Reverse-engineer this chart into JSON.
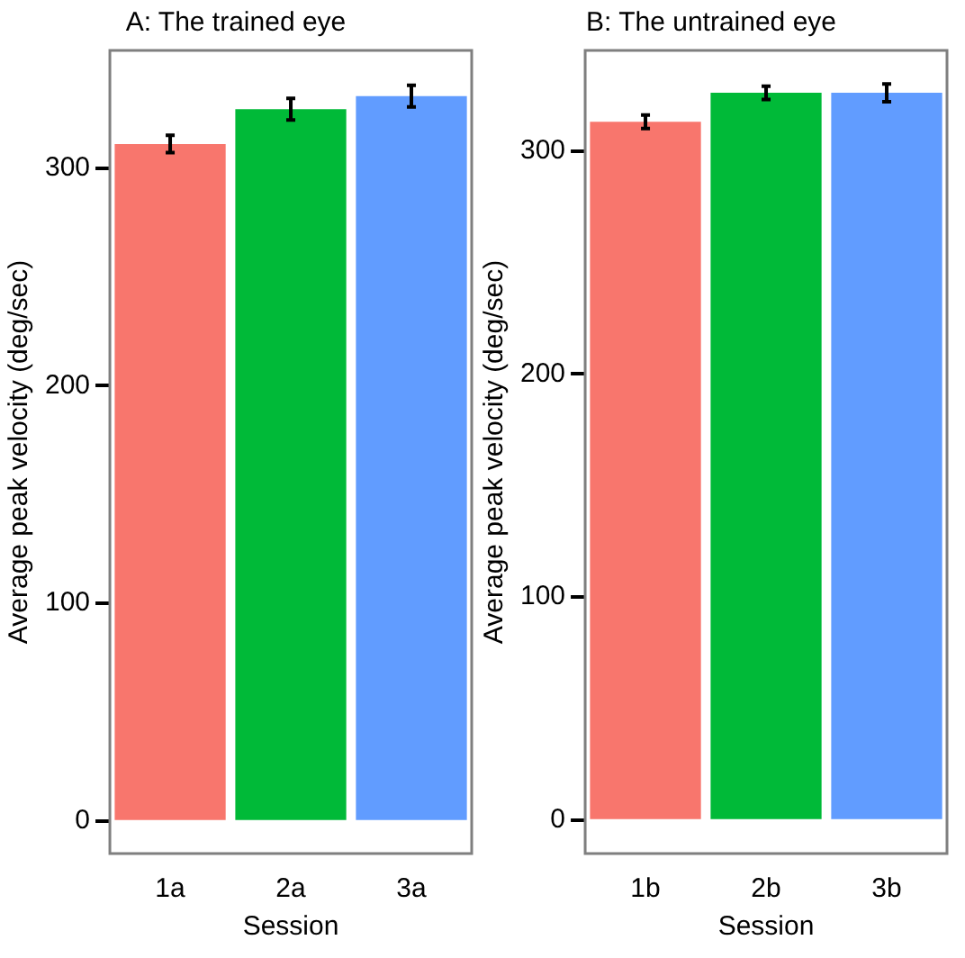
{
  "chart_data": [
    {
      "type": "bar",
      "title": "A: The trained eye",
      "xlabel": "Session",
      "ylabel": "Average peak velocity (deg/sec)",
      "categories": [
        "1a",
        "2a",
        "3a"
      ],
      "values": [
        311,
        327,
        333
      ],
      "errors": [
        4,
        5,
        5
      ],
      "colors": [
        "#f8766d",
        "#00ba38",
        "#619cff"
      ],
      "ylim": [
        -15,
        354
      ],
      "yticks": [
        0,
        100,
        200,
        300
      ],
      "grid": false,
      "legend": false
    },
    {
      "type": "bar",
      "title": "B: The untrained eye",
      "xlabel": "Session",
      "ylabel": "Average peak velocity (deg/sec)",
      "categories": [
        "1b",
        "2b",
        "3b"
      ],
      "values": [
        313,
        326,
        326
      ],
      "errors": [
        3,
        3,
        4
      ],
      "colors": [
        "#f8766d",
        "#00ba38",
        "#619cff"
      ],
      "ylim": [
        -15,
        345
      ],
      "yticks": [
        0,
        100,
        200,
        300
      ],
      "grid": false,
      "legend": false
    }
  ]
}
